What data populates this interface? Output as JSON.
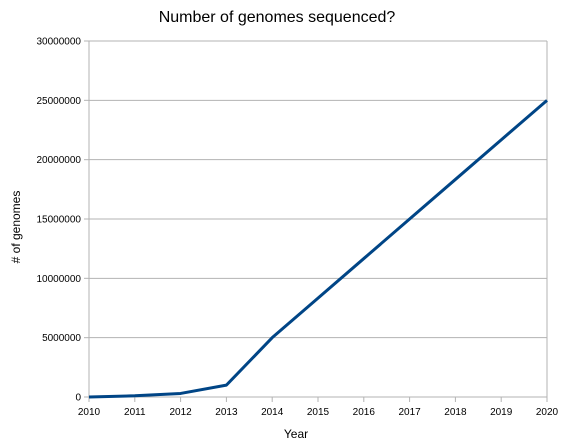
{
  "chart_data": {
    "type": "line",
    "title": "Number of genomes sequenced?",
    "xlabel": "Year",
    "ylabel": "# of genomes",
    "x": [
      2010,
      2011,
      2012,
      2013,
      2014,
      2015,
      2016,
      2017,
      2018,
      2019,
      2020
    ],
    "x_tick_labels": [
      "2010",
      "2011",
      "2012",
      "2013",
      "2014",
      "2015",
      "2016",
      "2017",
      "2018",
      "2019",
      "2020"
    ],
    "series": [
      {
        "values": [
          0,
          100000,
          300000,
          1000000,
          5000000,
          8333333,
          11666667,
          15000000,
          18333333,
          21666667,
          25000000
        ],
        "color": "#004586"
      }
    ],
    "ylim": [
      0,
      30000000
    ],
    "y_ticks": [
      0,
      5000000,
      10000000,
      15000000,
      20000000,
      25000000,
      30000000
    ],
    "y_tick_labels": [
      "0",
      "5000000",
      "10000000",
      "15000000",
      "20000000",
      "25000000",
      "30000000"
    ],
    "grid": "horizontal",
    "legend": "none"
  }
}
